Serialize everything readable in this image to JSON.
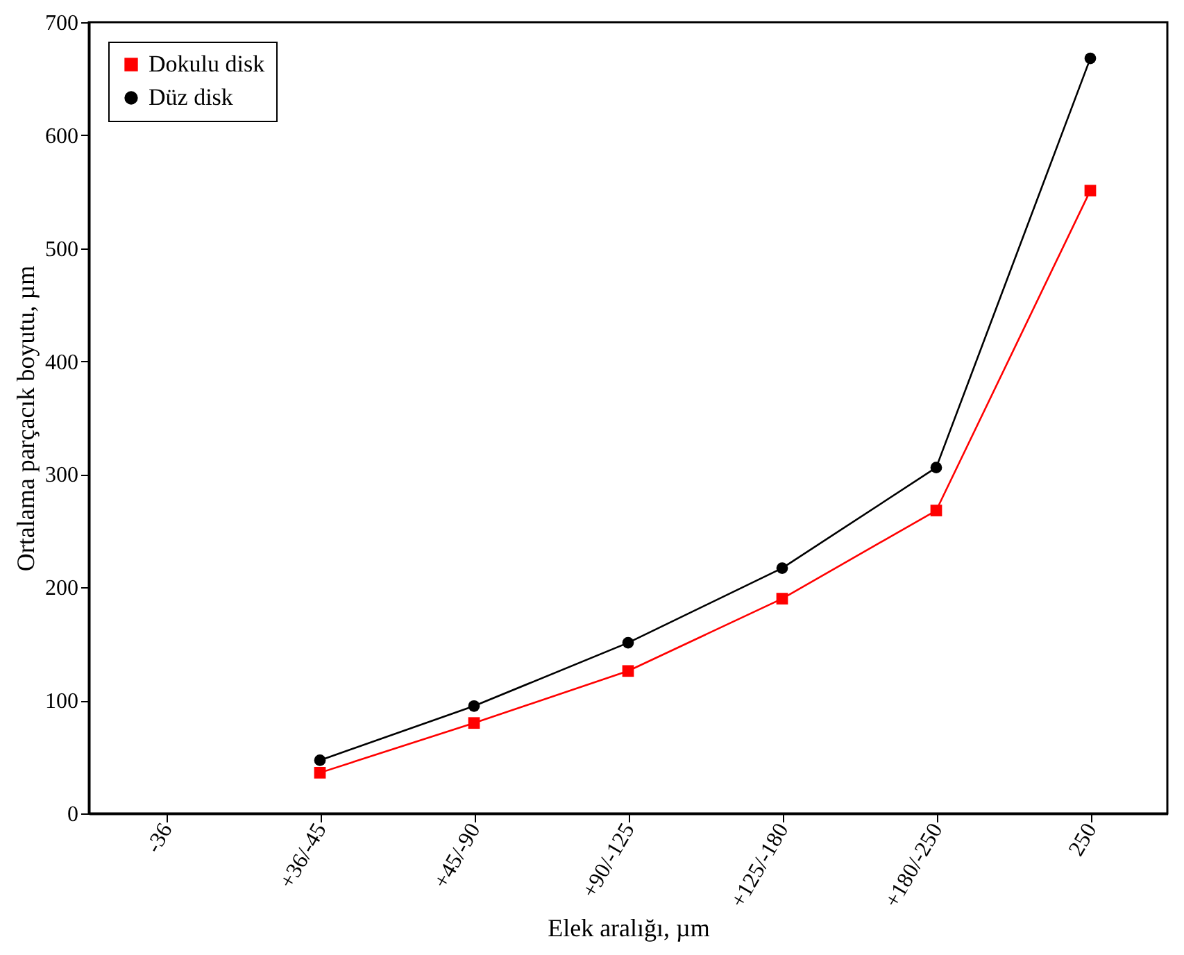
{
  "chart_data": {
    "type": "line",
    "xlabel": "Elek aralığı, µm",
    "ylabel": "Ortalama parçacık boyutu, µm",
    "categories": [
      "-36",
      "+36/-45",
      "+45/-90",
      "+90/-125",
      "+125/-180",
      "+180/-250",
      "250"
    ],
    "series": [
      {
        "name": "Dokulu disk",
        "color": "#ff0000",
        "marker": "square",
        "values": [
          null,
          36,
          80,
          126,
          190,
          268,
          551
        ]
      },
      {
        "name": "Düz disk",
        "color": "#000000",
        "marker": "circle",
        "values": [
          null,
          47,
          95,
          151,
          217,
          306,
          668
        ]
      }
    ],
    "ylim": [
      0,
      700
    ],
    "yticks": [
      0,
      100,
      200,
      300,
      400,
      500,
      600,
      700
    ],
    "grid": false,
    "legend": "top left"
  }
}
